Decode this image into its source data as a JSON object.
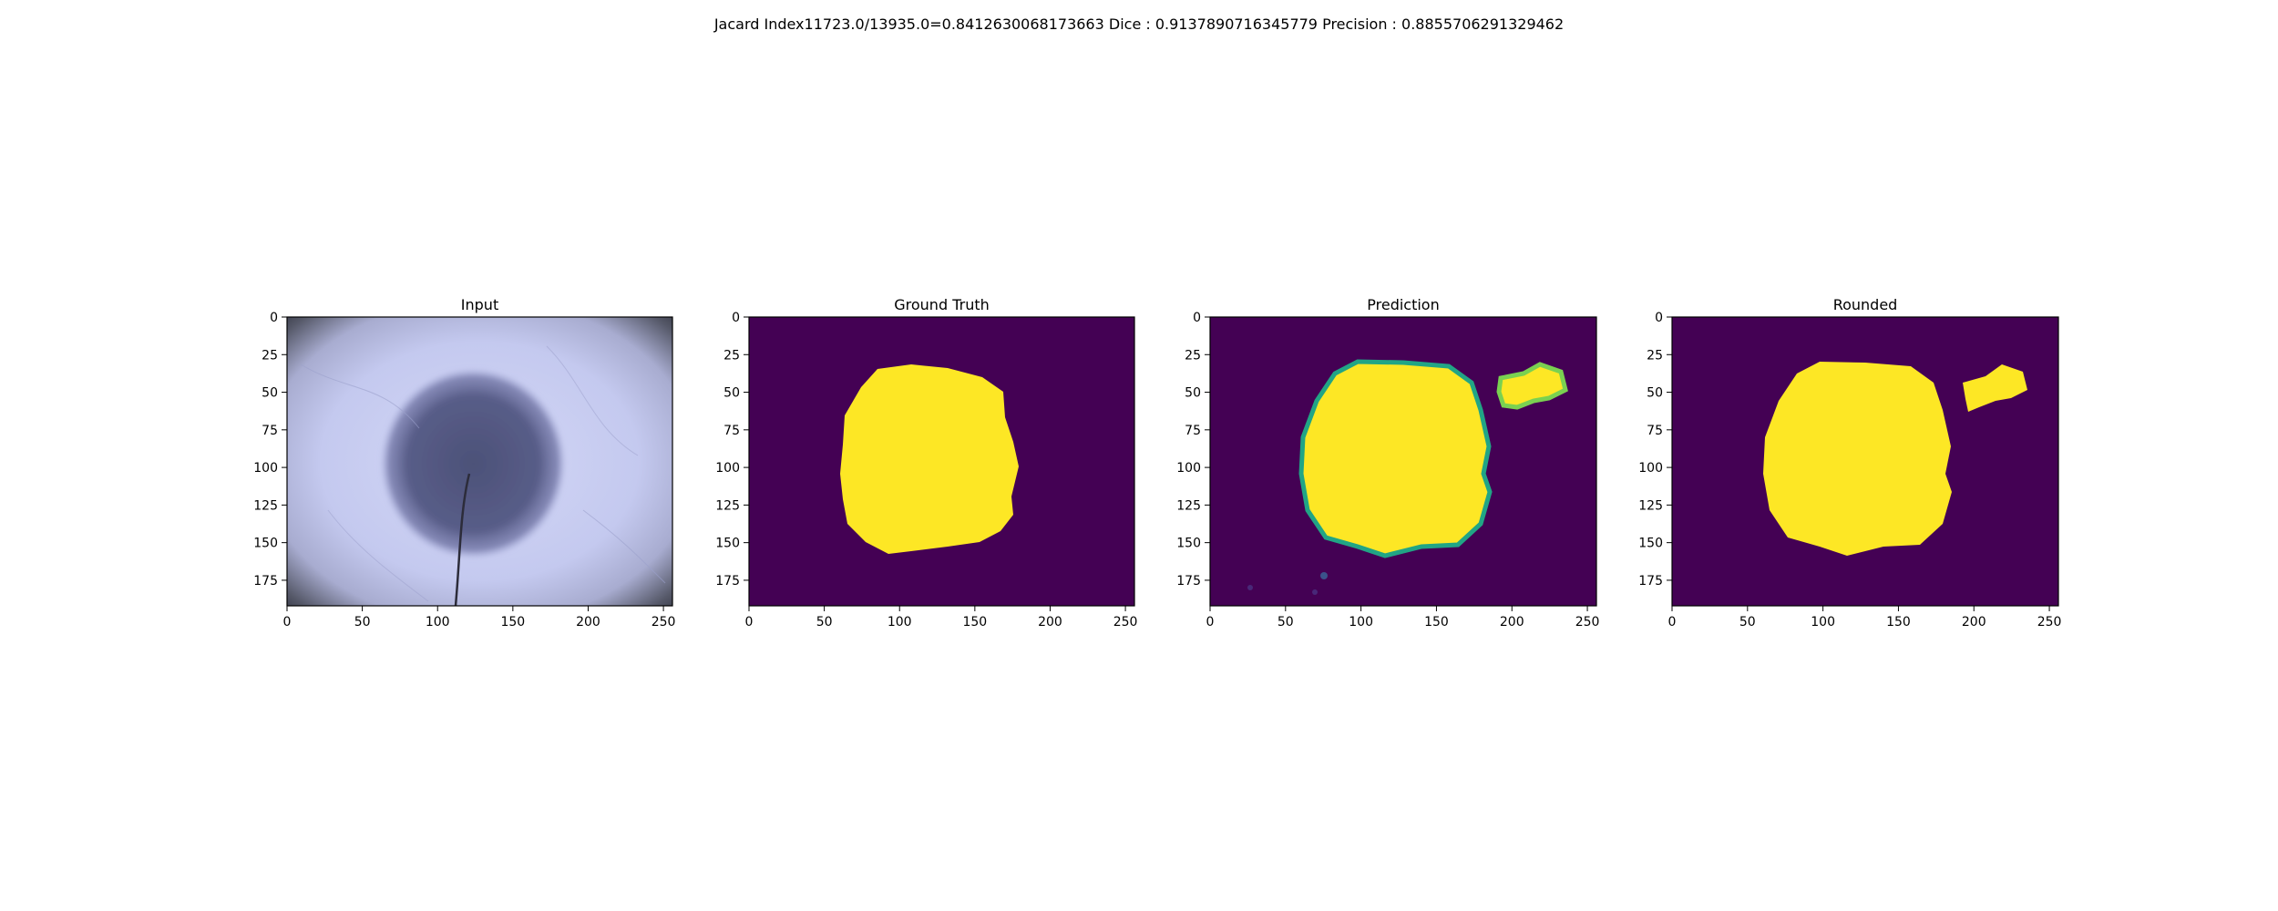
{
  "suptitle": "Jacard Index11723.0/13935.0=0.8412630068173663 Dice : 0.9137890716345779 Precision : 0.8855706291329462",
  "colors": {
    "background_purple": "#440154",
    "mask_yellow": "#fde725",
    "edge_teal": "#21a585",
    "edge_green": "#7ad151",
    "skin_light": "#c8ccf0",
    "lesion_dark": "#4a4f7a",
    "vignette_dark": "#2a2c38"
  },
  "chart_data": [
    {
      "type": "image",
      "title": "Input",
      "content": "dermoscopy image of a skin lesion",
      "xlim": [
        0,
        256
      ],
      "ylim": [
        192,
        0
      ],
      "xticks": [
        0,
        50,
        100,
        150,
        200,
        250
      ],
      "yticks": [
        0,
        25,
        50,
        75,
        100,
        125,
        150,
        175
      ],
      "grid": false
    },
    {
      "type": "heatmap",
      "title": "Ground Truth",
      "content": "binary lesion mask",
      "colormap": "viridis",
      "xlim": [
        0,
        256
      ],
      "ylim": [
        192,
        0
      ],
      "xticks": [
        0,
        50,
        100,
        150,
        200,
        250
      ],
      "yticks": [
        0,
        25,
        50,
        75,
        100,
        125,
        150,
        175
      ],
      "grid": false,
      "regions": [
        {
          "center": [
            120,
            95
          ],
          "extent_x": [
            63,
            181
          ],
          "extent_y": [
            31,
            158
          ]
        }
      ]
    },
    {
      "type": "heatmap",
      "title": "Prediction",
      "content": "soft probability mask",
      "colormap": "viridis",
      "xlim": [
        0,
        256
      ],
      "ylim": [
        192,
        0
      ],
      "xticks": [
        0,
        50,
        100,
        150,
        200,
        250
      ],
      "yticks": [
        0,
        25,
        50,
        75,
        100,
        125,
        150,
        175
      ],
      "grid": false,
      "regions": [
        {
          "center": [
            123,
            95
          ],
          "extent_x": [
            60,
            185
          ],
          "extent_y": [
            28,
            160
          ]
        },
        {
          "center": [
            215,
            45
          ],
          "extent_x": [
            193,
            237
          ],
          "extent_y": [
            30,
            62
          ]
        }
      ]
    },
    {
      "type": "heatmap",
      "title": "Rounded",
      "content": "thresholded binary mask",
      "colormap": "viridis",
      "xlim": [
        0,
        256
      ],
      "ylim": [
        192,
        0
      ],
      "xticks": [
        0,
        50,
        100,
        150,
        200,
        250
      ],
      "yticks": [
        0,
        25,
        50,
        75,
        100,
        125,
        150,
        175
      ],
      "grid": false,
      "regions": [
        {
          "center": [
            123,
            95
          ],
          "extent_x": [
            60,
            185
          ],
          "extent_y": [
            28,
            160
          ]
        },
        {
          "center": [
            215,
            45
          ],
          "extent_x": [
            193,
            237
          ],
          "extent_y": [
            30,
            62
          ]
        }
      ]
    }
  ]
}
